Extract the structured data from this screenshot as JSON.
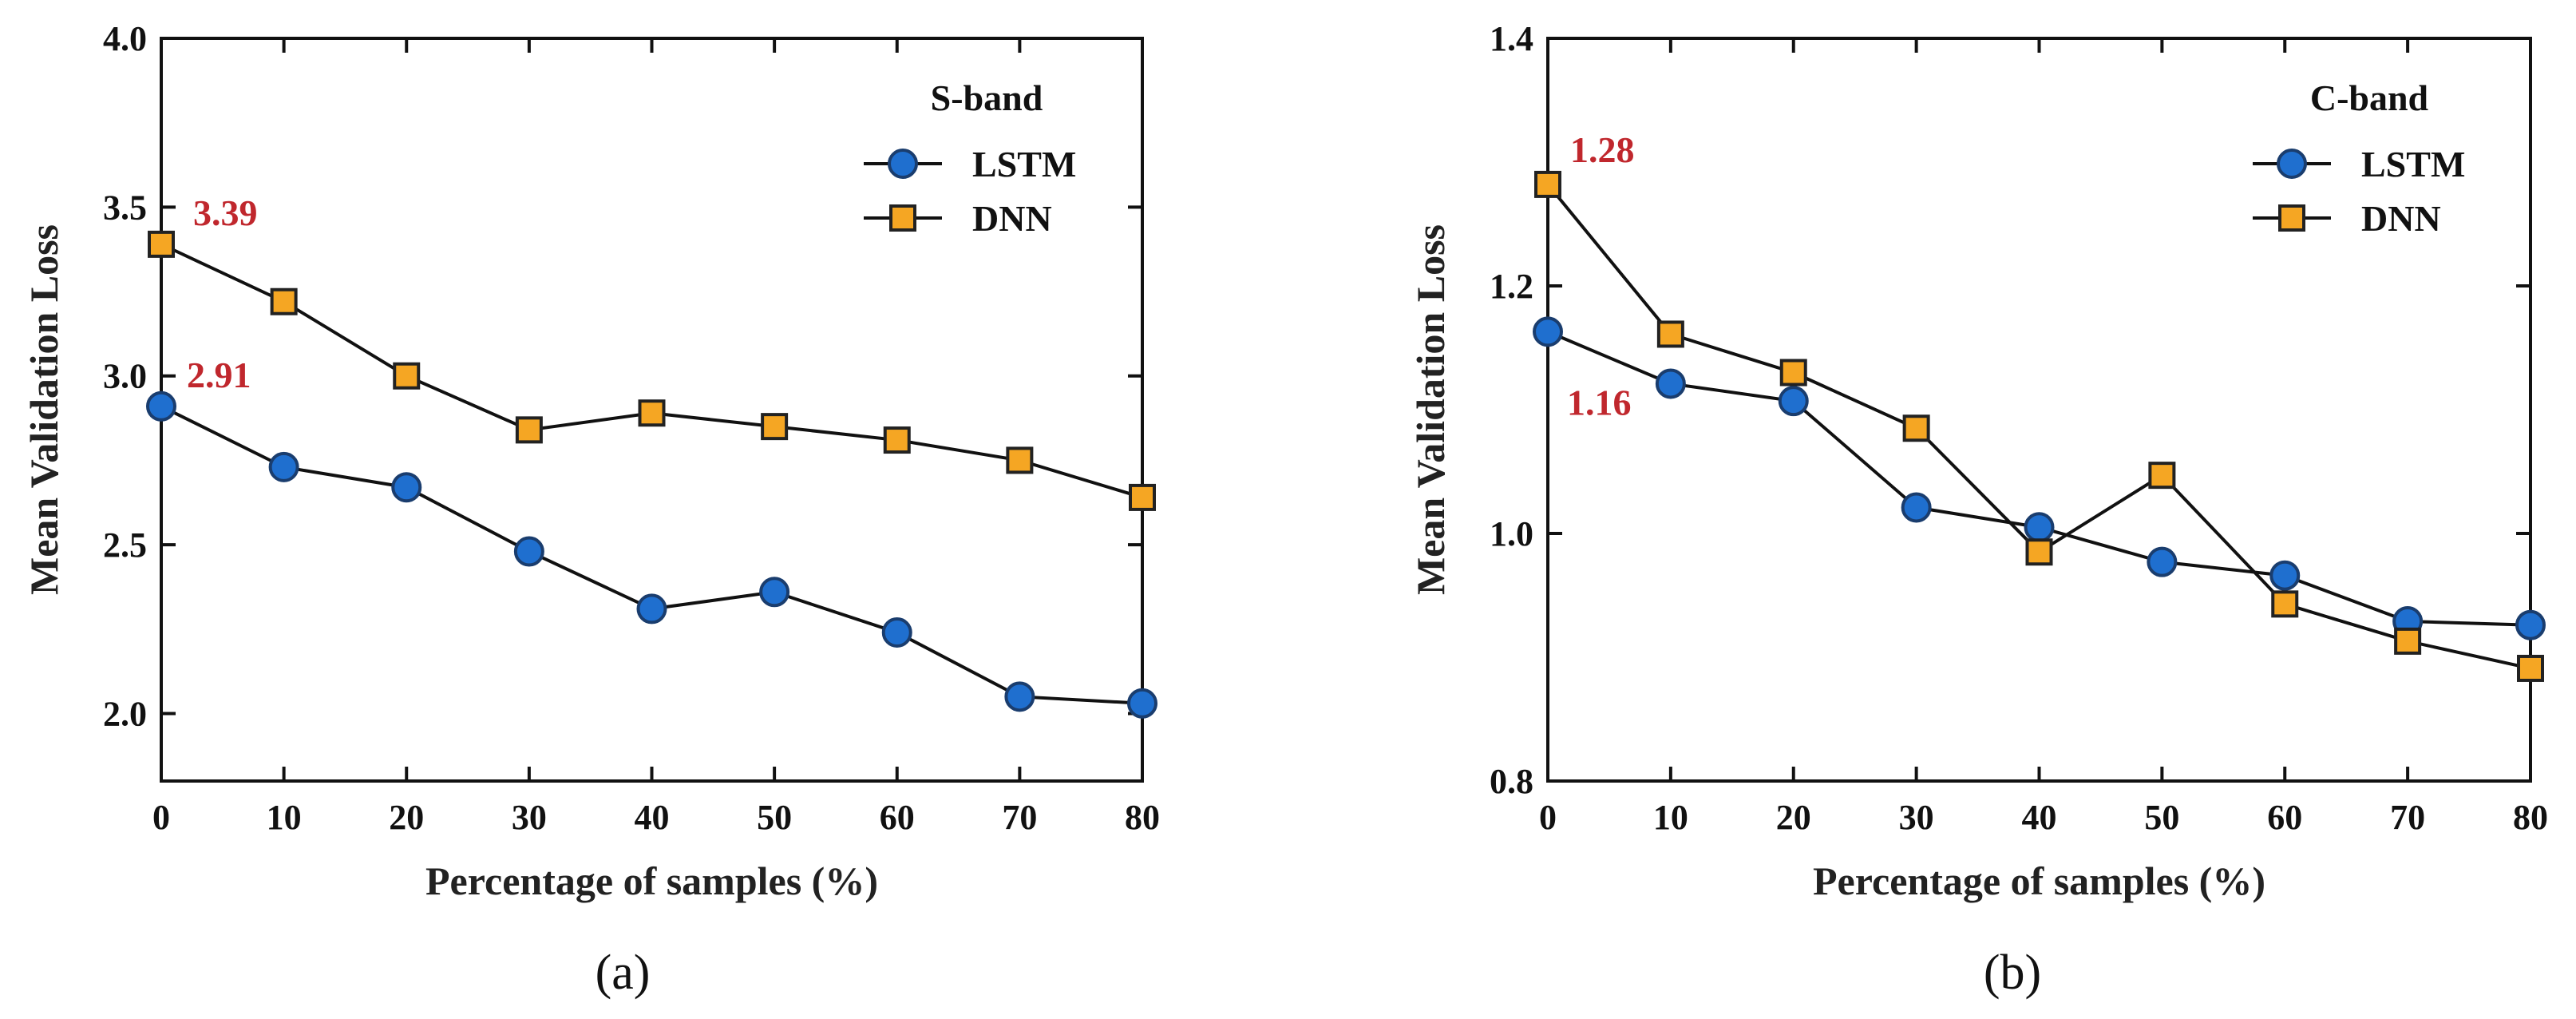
{
  "chart_data": [
    {
      "type": "line",
      "panel": "a",
      "caption_label": "(a)",
      "legend_title": "S-band",
      "xlabel": "Percentage of samples (%)",
      "ylabel": "Mean Validation Loss",
      "x": [
        0,
        10,
        20,
        30,
        40,
        50,
        60,
        70,
        80
      ],
      "xlim": [
        0,
        80
      ],
      "ylim": [
        1.8,
        4.0
      ],
      "yticks": [
        "2.0",
        "2.5",
        "3.0",
        "3.5",
        "4.0"
      ],
      "xticks": [
        "0",
        "10",
        "20",
        "30",
        "40",
        "50",
        "60",
        "70",
        "80"
      ],
      "series": [
        {
          "name": "LSTM",
          "marker": "circle",
          "color": "#1f6fcf",
          "values": [
            2.91,
            2.73,
            2.67,
            2.48,
            2.31,
            2.36,
            2.24,
            2.05,
            2.03
          ]
        },
        {
          "name": "DNN",
          "marker": "square",
          "color": "#f5a623",
          "values": [
            3.39,
            3.22,
            3.0,
            2.84,
            2.89,
            2.85,
            2.81,
            2.75,
            2.64
          ]
        }
      ],
      "annotations": [
        {
          "text": "3.39",
          "x": 0,
          "y": 3.39
        },
        {
          "text": "2.91",
          "x": 0,
          "y": 2.91
        }
      ]
    },
    {
      "type": "line",
      "panel": "b",
      "caption_label": "(b)",
      "legend_title": "C-band",
      "xlabel": "Percentage of samples (%)",
      "ylabel": "Mean Validation Loss",
      "x": [
        0,
        10,
        20,
        30,
        40,
        50,
        60,
        70,
        80
      ],
      "xlim": [
        0,
        80
      ],
      "ylim": [
        0.8,
        1.4
      ],
      "yticks": [
        "0.8",
        "1.0",
        "1.2",
        "1.4"
      ],
      "xticks": [
        "0",
        "10",
        "20",
        "30",
        "40",
        "50",
        "60",
        "70",
        "80"
      ],
      "series": [
        {
          "name": "LSTM",
          "marker": "circle",
          "color": "#1f6fcf",
          "values": [
            1.163,
            1.121,
            1.107,
            1.021,
            1.005,
            0.977,
            0.966,
            0.929,
            0.926
          ]
        },
        {
          "name": "DNN",
          "marker": "square",
          "color": "#f5a623",
          "values": [
            1.282,
            1.161,
            1.13,
            1.085,
            0.985,
            1.047,
            0.943,
            0.913,
            0.891
          ]
        }
      ],
      "annotations": [
        {
          "text": "1.28",
          "x": 0,
          "y": 1.282
        },
        {
          "text": "1.16",
          "x": 0,
          "y": 1.163
        }
      ]
    }
  ]
}
